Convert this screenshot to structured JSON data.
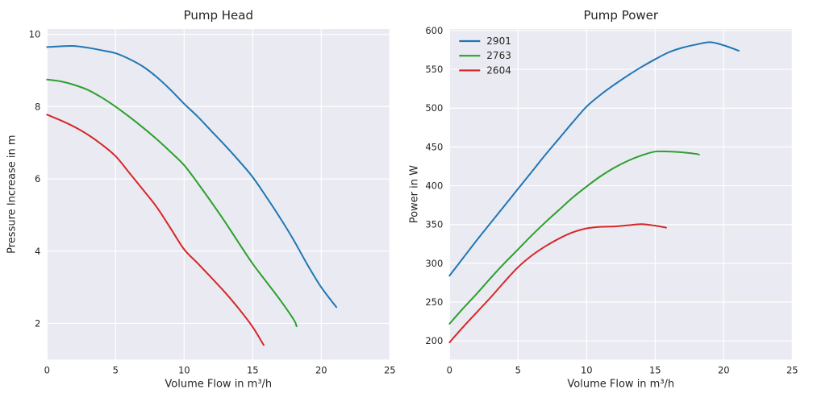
{
  "figure": {
    "background_color": "#ffffff",
    "axes_background_color": "#eaeaf2",
    "grid_color": "#ffffff",
    "text_color": "#262626",
    "accent_colors": {
      "blue": "#1f77b4",
      "green": "#2ca02c",
      "red": "#d62728"
    }
  },
  "chart_data": [
    {
      "type": "line",
      "title": "Pump Head",
      "xlabel": "Volume Flow in m³/h",
      "ylabel": "Pressure Increase in m",
      "xlim": [
        0,
        25
      ],
      "ylim": [
        1.0,
        10.15
      ],
      "xticks": [
        0,
        5,
        10,
        15,
        20,
        25
      ],
      "yticks": [
        2,
        4,
        6,
        8,
        10
      ],
      "grid": true,
      "legend": null,
      "series": [
        {
          "name": "2901",
          "color": "#1f77b4",
          "x": [
            0,
            1,
            2,
            3,
            4,
            5,
            6,
            7,
            8,
            9,
            10,
            11,
            12,
            13,
            14,
            15,
            16,
            17,
            18,
            19,
            20,
            21.1
          ],
          "y": [
            9.65,
            9.67,
            9.68,
            9.63,
            9.56,
            9.48,
            9.32,
            9.11,
            8.82,
            8.47,
            8.08,
            7.72,
            7.32,
            6.92,
            6.5,
            6.05,
            5.5,
            4.92,
            4.3,
            3.62,
            3.0,
            2.45
          ]
        },
        {
          "name": "2763",
          "color": "#2ca02c",
          "x": [
            0,
            1,
            2,
            3,
            4,
            5,
            6,
            7,
            8,
            9,
            10,
            11,
            12,
            13,
            14,
            15,
            16,
            17,
            18,
            18.2
          ],
          "y": [
            8.75,
            8.7,
            8.6,
            8.46,
            8.25,
            8.0,
            7.72,
            7.42,
            7.1,
            6.75,
            6.38,
            5.88,
            5.35,
            4.8,
            4.22,
            3.65,
            3.15,
            2.65,
            2.1,
            1.92
          ]
        },
        {
          "name": "2604",
          "color": "#d62728",
          "x": [
            0,
            1,
            2,
            3,
            4,
            5,
            6,
            7,
            8,
            9,
            10,
            11,
            12,
            13,
            14,
            15,
            15.8
          ],
          "y": [
            7.78,
            7.62,
            7.44,
            7.22,
            6.95,
            6.63,
            6.17,
            5.7,
            5.22,
            4.64,
            4.05,
            3.66,
            3.26,
            2.85,
            2.4,
            1.9,
            1.4
          ]
        }
      ]
    },
    {
      "type": "line",
      "title": "Pump Power",
      "xlabel": "Volume Flow in m³/h",
      "ylabel": "Power in W",
      "xlim": [
        0,
        25
      ],
      "ylim": [
        176,
        602
      ],
      "xticks": [
        0,
        5,
        10,
        15,
        20,
        25
      ],
      "yticks": [
        200,
        250,
        300,
        350,
        400,
        450,
        500,
        550,
        600
      ],
      "grid": true,
      "legend": {
        "position": "upper left",
        "labels": [
          "2901",
          "2763",
          "2604"
        ]
      },
      "series": [
        {
          "name": "2901",
          "color": "#1f77b4",
          "x": [
            0,
            1,
            2,
            3,
            4,
            5,
            6,
            7,
            8,
            9,
            10,
            11,
            12,
            13,
            14,
            15,
            16,
            17,
            18,
            19,
            20,
            21.1
          ],
          "y": [
            284,
            307,
            330,
            352,
            374,
            396,
            418,
            440,
            461,
            482,
            502,
            517,
            530,
            542,
            553,
            563,
            572,
            578,
            582,
            585,
            581,
            574
          ]
        },
        {
          "name": "2763",
          "color": "#2ca02c",
          "x": [
            0,
            1,
            2,
            3,
            4,
            5,
            6,
            7,
            8,
            9,
            10,
            11,
            12,
            13,
            14,
            15,
            16,
            17,
            18,
            18.2
          ],
          "y": [
            222,
            242,
            261,
            281,
            300,
            318,
            336,
            353,
            369,
            385,
            399,
            412,
            423,
            432,
            439,
            444,
            444,
            443,
            441,
            440
          ]
        },
        {
          "name": "2604",
          "color": "#d62728",
          "x": [
            0,
            1,
            2,
            3,
            4,
            5,
            6,
            7,
            8,
            9,
            10,
            11,
            12,
            13,
            14,
            15,
            15.8
          ],
          "y": [
            198,
            218,
            237,
            256,
            276,
            295,
            310,
            322,
            332,
            340,
            345,
            347,
            347.5,
            349,
            350.5,
            348.5,
            346
          ]
        }
      ]
    }
  ]
}
